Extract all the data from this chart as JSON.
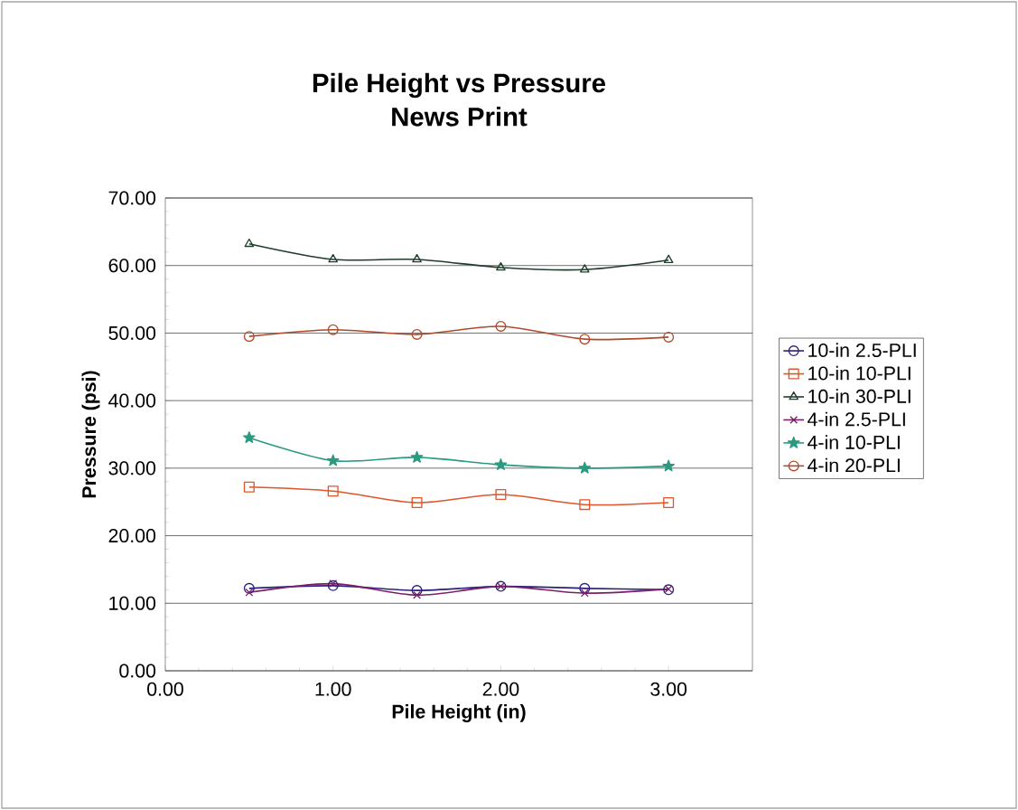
{
  "chart_data": {
    "type": "line",
    "title": "Pile Height vs Pressure",
    "subtitle": "News Print",
    "xlabel": "Pile Height (in)",
    "ylabel": "Pressure (psi)",
    "x": [
      0.5,
      1.0,
      1.5,
      2.0,
      2.5,
      3.0
    ],
    "series": [
      {
        "name": "10-in 2.5-PLI",
        "color": "#2b1f7a",
        "marker": "circle",
        "values": [
          12.2,
          12.6,
          11.9,
          12.5,
          12.2,
          12.0
        ]
      },
      {
        "name": "10-in 10-PLI",
        "color": "#e0552a",
        "marker": "square",
        "values": [
          27.2,
          26.6,
          24.9,
          26.1,
          24.6,
          24.9
        ]
      },
      {
        "name": "10-in 30-PLI",
        "color": "#1f3d2b",
        "marker": "triangle",
        "values": [
          63.2,
          60.9,
          60.9,
          59.7,
          59.4,
          60.8
        ]
      },
      {
        "name": "4-in 2.5-PLI",
        "color": "#7a1f6a",
        "marker": "cross",
        "values": [
          11.6,
          12.9,
          11.2,
          12.5,
          11.5,
          12.1
        ]
      },
      {
        "name": "4-in 10-PLI",
        "color": "#2a9a80",
        "marker": "star",
        "values": [
          34.5,
          31.1,
          31.6,
          30.5,
          30.0,
          30.3
        ]
      },
      {
        "name": "4-in 20-PLI",
        "color": "#b04a2a",
        "marker": "circle",
        "values": [
          49.5,
          50.5,
          49.8,
          51.0,
          49.1,
          49.4
        ]
      }
    ],
    "xlim": [
      0,
      3.5
    ],
    "ylim": [
      0,
      70
    ],
    "xticks": [
      {
        "value": 0,
        "label": "0.00"
      },
      {
        "value": 1,
        "label": "1.00"
      },
      {
        "value": 2,
        "label": "2.00"
      },
      {
        "value": 3,
        "label": "3.00"
      }
    ],
    "yticks": [
      {
        "value": 0,
        "label": "0.00"
      },
      {
        "value": 10,
        "label": "10.00"
      },
      {
        "value": 20,
        "label": "20.00"
      },
      {
        "value": 30,
        "label": "30.00"
      },
      {
        "value": 40,
        "label": "40.00"
      },
      {
        "value": 50,
        "label": "50.00"
      },
      {
        "value": 60,
        "label": "60.00"
      },
      {
        "value": 70,
        "label": "70.00"
      }
    ],
    "grid": "y",
    "legend": "right",
    "line_style": "solid"
  }
}
